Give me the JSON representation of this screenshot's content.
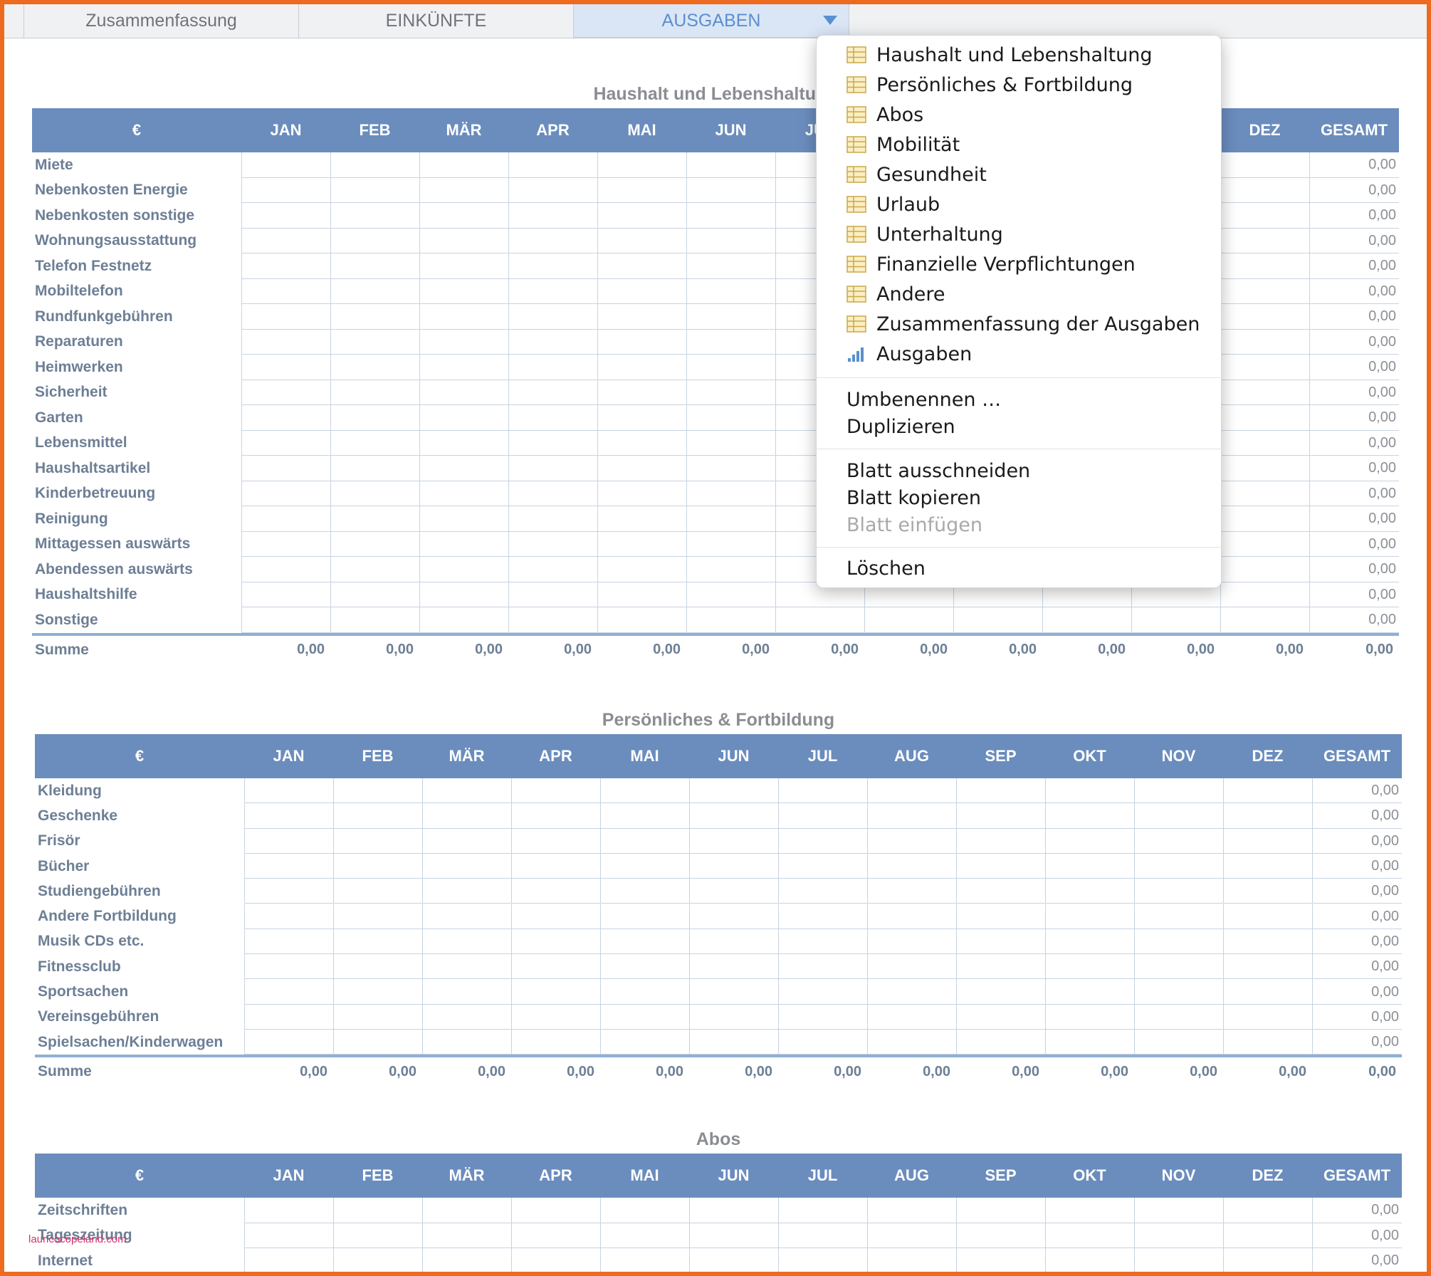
{
  "tabs": [
    {
      "label": "Zusammenfassung"
    },
    {
      "label": "EINKÜNFTE"
    },
    {
      "label": "AUSGABEN"
    }
  ],
  "columns": [
    "€",
    "JAN",
    "FEB",
    "MÄR",
    "APR",
    "MAI",
    "JUN",
    "JUL",
    "AUG",
    "SEP",
    "OKT",
    "NOV",
    "DEZ",
    "GESAMT"
  ],
  "sections": [
    {
      "title": "Haushalt und Lebenshaltung",
      "rows": [
        {
          "label": "Miete",
          "total": "0,00"
        },
        {
          "label": "Nebenkosten Energie",
          "total": "0,00"
        },
        {
          "label": "Nebenkosten sonstige",
          "total": "0,00"
        },
        {
          "label": "Wohnungsausstattung",
          "total": "0,00"
        },
        {
          "label": "Telefon Festnetz",
          "total": "0,00"
        },
        {
          "label": "Mobiltelefon",
          "total": "0,00"
        },
        {
          "label": "Rundfunkgebühren",
          "total": "0,00"
        },
        {
          "label": "Reparaturen",
          "total": "0,00"
        },
        {
          "label": "Heimwerken",
          "total": "0,00"
        },
        {
          "label": "Sicherheit",
          "total": "0,00"
        },
        {
          "label": "Garten",
          "total": "0,00"
        },
        {
          "label": "Lebensmittel",
          "total": "0,00"
        },
        {
          "label": "Haushaltsartikel",
          "total": "0,00"
        },
        {
          "label": "Kinderbetreuung",
          "total": "0,00"
        },
        {
          "label": "Reinigung",
          "total": "0,00"
        },
        {
          "label": "Mittagessen auswärts",
          "total": "0,00"
        },
        {
          "label": "Abendessen auswärts",
          "total": "0,00"
        },
        {
          "label": "Haushaltshilfe",
          "total": "0,00"
        },
        {
          "label": "Sonstige",
          "total": "0,00"
        }
      ],
      "sum": {
        "label": "Summe",
        "values": [
          "0,00",
          "0,00",
          "0,00",
          "0,00",
          "0,00",
          "0,00",
          "0,00",
          "0,00",
          "0,00",
          "0,00",
          "0,00",
          "0,00",
          "0,00"
        ]
      }
    },
    {
      "title": "Persönliches & Fortbildung",
      "rows": [
        {
          "label": "Kleidung",
          "total": "0,00"
        },
        {
          "label": "Geschenke",
          "total": "0,00"
        },
        {
          "label": "Frisör",
          "total": "0,00"
        },
        {
          "label": "Bücher",
          "total": "0,00"
        },
        {
          "label": "Studiengebühren",
          "total": "0,00"
        },
        {
          "label": "Andere Fortbildung",
          "total": "0,00"
        },
        {
          "label": "Musik CDs etc.",
          "total": "0,00"
        },
        {
          "label": "Fitnessclub",
          "total": "0,00"
        },
        {
          "label": "Sportsachen",
          "total": "0,00"
        },
        {
          "label": "Vereinsgebühren",
          "total": "0,00"
        },
        {
          "label": "Spielsachen/Kinderwagen",
          "total": "0,00"
        }
      ],
      "sum": {
        "label": "Summe",
        "values": [
          "0,00",
          "0,00",
          "0,00",
          "0,00",
          "0,00",
          "0,00",
          "0,00",
          "0,00",
          "0,00",
          "0,00",
          "0,00",
          "0,00",
          "0,00"
        ]
      }
    },
    {
      "title": "Abos",
      "rows": [
        {
          "label": "Zeitschriften",
          "total": "0,00"
        },
        {
          "label": "Tageszeitung",
          "total": "0,00"
        },
        {
          "label": "Internet",
          "total": "0,00"
        }
      ]
    }
  ],
  "menu": {
    "sheets": [
      {
        "label": "Haushalt und Lebenshaltung",
        "icon": "table-icon"
      },
      {
        "label": "Persönliches & Fortbildung",
        "icon": "table-icon"
      },
      {
        "label": "Abos",
        "icon": "table-icon"
      },
      {
        "label": "Mobilität",
        "icon": "table-icon"
      },
      {
        "label": "Gesundheit",
        "icon": "table-icon"
      },
      {
        "label": "Urlaub",
        "icon": "table-icon"
      },
      {
        "label": "Unterhaltung",
        "icon": "table-icon"
      },
      {
        "label": "Finanzielle Verpflichtungen",
        "icon": "table-icon"
      },
      {
        "label": "Andere",
        "icon": "table-icon"
      },
      {
        "label": "Zusammenfassung der Ausgaben",
        "icon": "table-icon"
      },
      {
        "label": "Ausgaben",
        "icon": "bar-chart-icon"
      }
    ],
    "actions1": [
      "Umbenennen …",
      "Duplizieren"
    ],
    "actions2": [
      {
        "label": "Blatt ausschneiden",
        "enabled": true
      },
      {
        "label": "Blatt kopieren",
        "enabled": true
      },
      {
        "label": "Blatt einfügen",
        "enabled": false
      }
    ],
    "delete_label": "Löschen"
  },
  "watermark": "lauricocopeland.com",
  "colors": {
    "header": "#6b8dbd",
    "accent": "#5a8fd0",
    "frame": "#ee6a1f"
  }
}
